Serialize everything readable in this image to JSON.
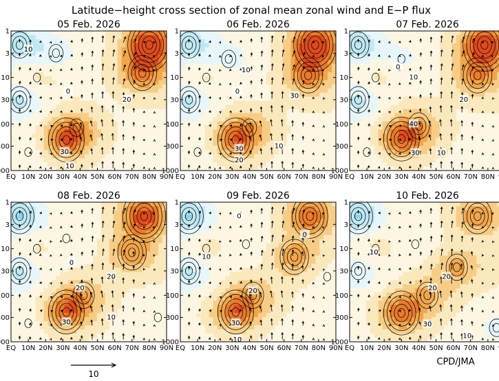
{
  "figure": {
    "title": "Latitude−height cross section of zonal mean zonal wind and E−P flux",
    "credit": "CPD/JMA",
    "reference_vector_label": "10"
  },
  "colors": {
    "background": "#ffffff",
    "westerly_scale": [
      "#fdf6e2",
      "#fbe8bd",
      "#f7cd86",
      "#f2a64c",
      "#ec7a2b",
      "#e24a1c"
    ],
    "easterly_scale": [
      "#e6f6fb",
      "#bfe9f4",
      "#8ad6eb",
      "#4cbfdd",
      "#1f98c4"
    ],
    "contour": "#111111",
    "arrow": "#000000"
  },
  "chart_data": [
    {
      "type": "heatmap",
      "title": "05 Feb. 2026",
      "x_ticks": [
        "EQ",
        "10N",
        "20N",
        "30N",
        "40N",
        "50N",
        "60N",
        "70N",
        "80N",
        "90N"
      ],
      "y_ticks": [
        "1",
        "3",
        "10",
        "30",
        "100",
        "300",
        "1000"
      ],
      "x_range": [
        0,
        90
      ],
      "y_range": [
        1000,
        1
      ],
      "y_scale": "log",
      "features": [
        {
          "lat": 80,
          "pres": 2,
          "u": 55
        },
        {
          "lat": 76,
          "pres": 8,
          "u": 35
        },
        {
          "lat": 32,
          "pres": 220,
          "u": 38
        },
        {
          "lat": 38,
          "pres": 120,
          "u": 18
        },
        {
          "lat": 5,
          "pres": 2,
          "u": -25
        },
        {
          "lat": 26,
          "pres": 3,
          "u": -12
        },
        {
          "lat": 5,
          "pres": 30,
          "u": -20
        },
        {
          "lat": 15,
          "pres": 10,
          "u": 10
        },
        {
          "lat": 10,
          "pres": 400,
          "u": -5
        }
      ],
      "contour_labels": [
        {
          "text": "10",
          "lat": 10,
          "pres": 2.5
        },
        {
          "text": "0",
          "lat": 33,
          "pres": 20
        },
        {
          "text": "20",
          "lat": 67,
          "pres": 30
        },
        {
          "text": "30",
          "lat": 31,
          "pres": 400
        },
        {
          "text": "10",
          "lat": 34,
          "pres": 800
        }
      ]
    },
    {
      "type": "heatmap",
      "title": "06 Feb. 2026",
      "x_ticks": [
        "EQ",
        "10N",
        "20N",
        "30N",
        "40N",
        "50N",
        "60N",
        "70N",
        "80N",
        "90N"
      ],
      "y_ticks": [
        "1",
        "3",
        "10",
        "30",
        "100",
        "300",
        "1000"
      ],
      "x_range": [
        0,
        90
      ],
      "y_range": [
        1000,
        1
      ],
      "y_scale": "log",
      "features": [
        {
          "lat": 78,
          "pres": 2,
          "u": 55
        },
        {
          "lat": 74,
          "pres": 9,
          "u": 35
        },
        {
          "lat": 32,
          "pres": 220,
          "u": 36
        },
        {
          "lat": 40,
          "pres": 120,
          "u": 18
        },
        {
          "lat": 5,
          "pres": 2,
          "u": -25
        },
        {
          "lat": 28,
          "pres": 4,
          "u": -12
        },
        {
          "lat": 5,
          "pres": 30,
          "u": -20
        },
        {
          "lat": 15,
          "pres": 10,
          "u": 10
        },
        {
          "lat": 10,
          "pres": 400,
          "u": -5
        }
      ],
      "contour_labels": [
        {
          "text": "10",
          "lat": 38,
          "pres": 7
        },
        {
          "text": "0",
          "lat": 33,
          "pres": 20
        },
        {
          "text": "30",
          "lat": 66,
          "pres": 25
        },
        {
          "text": "10",
          "lat": 57,
          "pres": 300
        },
        {
          "text": "30",
          "lat": 34,
          "pres": 340
        },
        {
          "text": "20",
          "lat": 34,
          "pres": 600
        }
      ]
    },
    {
      "type": "heatmap",
      "title": "07 Feb. 2026",
      "x_ticks": [
        "EQ",
        "10N",
        "20N",
        "30N",
        "40N",
        "50N",
        "60N",
        "70N",
        "80N",
        "90N"
      ],
      "y_ticks": [
        "1",
        "3",
        "10",
        "30",
        "100",
        "300",
        "1000"
      ],
      "x_range": [
        0,
        90
      ],
      "y_range": [
        1000,
        1
      ],
      "y_scale": "log",
      "features": [
        {
          "lat": 78,
          "pres": 2,
          "u": 52
        },
        {
          "lat": 74,
          "pres": 9,
          "u": 32
        },
        {
          "lat": 30,
          "pres": 210,
          "u": 40
        },
        {
          "lat": 40,
          "pres": 110,
          "u": 20
        },
        {
          "lat": 5,
          "pres": 2,
          "u": -25
        },
        {
          "lat": 30,
          "pres": 4,
          "u": -10
        },
        {
          "lat": 5,
          "pres": 30,
          "u": -20
        },
        {
          "lat": 15,
          "pres": 10,
          "u": 10
        },
        {
          "lat": 10,
          "pres": 400,
          "u": -5
        }
      ],
      "contour_labels": [
        {
          "text": "0",
          "lat": 28,
          "pres": 6
        },
        {
          "text": "10",
          "lat": 37,
          "pres": 10
        },
        {
          "text": "20",
          "lat": 66,
          "pres": 30
        },
        {
          "text": "40",
          "lat": 37,
          "pres": 100
        },
        {
          "text": "10",
          "lat": 53,
          "pres": 420
        },
        {
          "text": "30",
          "lat": 38,
          "pres": 420
        }
      ]
    },
    {
      "type": "heatmap",
      "title": "08 Feb. 2026",
      "x_ticks": [
        "EQ",
        "10N",
        "20N",
        "30N",
        "40N",
        "50N",
        "60N",
        "70N",
        "80N",
        "90N"
      ],
      "y_ticks": [
        "1",
        "3",
        "10",
        "30",
        "100",
        "300",
        "1000"
      ],
      "x_range": [
        0,
        90
      ],
      "y_range": [
        1000,
        1
      ],
      "y_scale": "log",
      "features": [
        {
          "lat": 77,
          "pres": 2,
          "u": 48
        },
        {
          "lat": 70,
          "pres": 12,
          "u": 30
        },
        {
          "lat": 32,
          "pres": 230,
          "u": 40
        },
        {
          "lat": 42,
          "pres": 100,
          "u": 20
        },
        {
          "lat": 5,
          "pres": 2,
          "u": -28
        },
        {
          "lat": 32,
          "pres": 6,
          "u": -8
        },
        {
          "lat": 5,
          "pres": 30,
          "u": -20
        },
        {
          "lat": 15,
          "pres": 10,
          "u": 10
        },
        {
          "lat": 10,
          "pres": 400,
          "u": -5
        },
        {
          "lat": 85,
          "pres": 300,
          "u": -3
        }
      ],
      "contour_labels": [
        {
          "text": "0",
          "lat": 35,
          "pres": 20
        },
        {
          "text": "20",
          "lat": 58,
          "pres": 40
        },
        {
          "text": "20",
          "lat": 40,
          "pres": 70
        },
        {
          "text": "30",
          "lat": 32,
          "pres": 380
        },
        {
          "text": "10",
          "lat": 58,
          "pres": 300
        }
      ]
    },
    {
      "type": "heatmap",
      "title": "09 Feb. 2026",
      "x_ticks": [
        "EQ",
        "10N",
        "20N",
        "30N",
        "40N",
        "50N",
        "60N",
        "70N",
        "80N",
        "90N"
      ],
      "y_ticks": [
        "1",
        "3",
        "10",
        "30",
        "100",
        "300",
        "1000"
      ],
      "x_range": [
        0,
        90
      ],
      "y_range": [
        1000,
        1
      ],
      "y_scale": "log",
      "features": [
        {
          "lat": 75,
          "pres": 2,
          "u": 40
        },
        {
          "lat": 66,
          "pres": 15,
          "u": 28
        },
        {
          "lat": 32,
          "pres": 230,
          "u": 38
        },
        {
          "lat": 42,
          "pres": 100,
          "u": 20
        },
        {
          "lat": 5,
          "pres": 2,
          "u": -28
        },
        {
          "lat": 38,
          "pres": 8,
          "u": -8
        },
        {
          "lat": 5,
          "pres": 30,
          "u": -20
        },
        {
          "lat": 15,
          "pres": 10,
          "u": 10
        },
        {
          "lat": 85,
          "pres": 40,
          "u": -4
        }
      ],
      "contour_labels": [
        {
          "text": "0",
          "lat": 34,
          "pres": 2
        },
        {
          "text": "0",
          "lat": 72,
          "pres": 5
        },
        {
          "text": "10",
          "lat": 15,
          "pres": 15
        },
        {
          "text": "20",
          "lat": 42,
          "pres": 80
        },
        {
          "text": "30",
          "lat": 32,
          "pres": 400
        },
        {
          "text": "10",
          "lat": 33,
          "pres": 900
        }
      ]
    },
    {
      "type": "heatmap",
      "title": "10 Feb. 2026",
      "x_ticks": [
        "EQ",
        "10N",
        "20N",
        "30N",
        "40N",
        "50N",
        "60N",
        "70N",
        "80N",
        "90N"
      ],
      "y_ticks": [
        "1",
        "3",
        "10",
        "30",
        "100",
        "300",
        "1000"
      ],
      "x_range": [
        0,
        90
      ],
      "y_range": [
        1000,
        1
      ],
      "y_scale": "log",
      "features": [
        {
          "lat": 74,
          "pres": 2,
          "u": 30
        },
        {
          "lat": 62,
          "pres": 25,
          "u": 25
        },
        {
          "lat": 30,
          "pres": 240,
          "u": 40
        },
        {
          "lat": 45,
          "pres": 100,
          "u": 20
        },
        {
          "lat": 5,
          "pres": 2,
          "u": -28
        },
        {
          "lat": 38,
          "pres": 8,
          "u": -8
        },
        {
          "lat": 5,
          "pres": 30,
          "u": -15
        },
        {
          "lat": 15,
          "pres": 10,
          "u": 10
        },
        {
          "lat": 85,
          "pres": 500,
          "u": -12
        }
      ],
      "contour_labels": [
        {
          "text": "10",
          "lat": 14,
          "pres": 12
        },
        {
          "text": "20",
          "lat": 56,
          "pres": 40
        },
        {
          "text": "20",
          "lat": 48,
          "pres": 70
        },
        {
          "text": "30",
          "lat": 45,
          "pres": 420
        },
        {
          "text": "10",
          "lat": 68,
          "pres": 750
        }
      ]
    }
  ]
}
